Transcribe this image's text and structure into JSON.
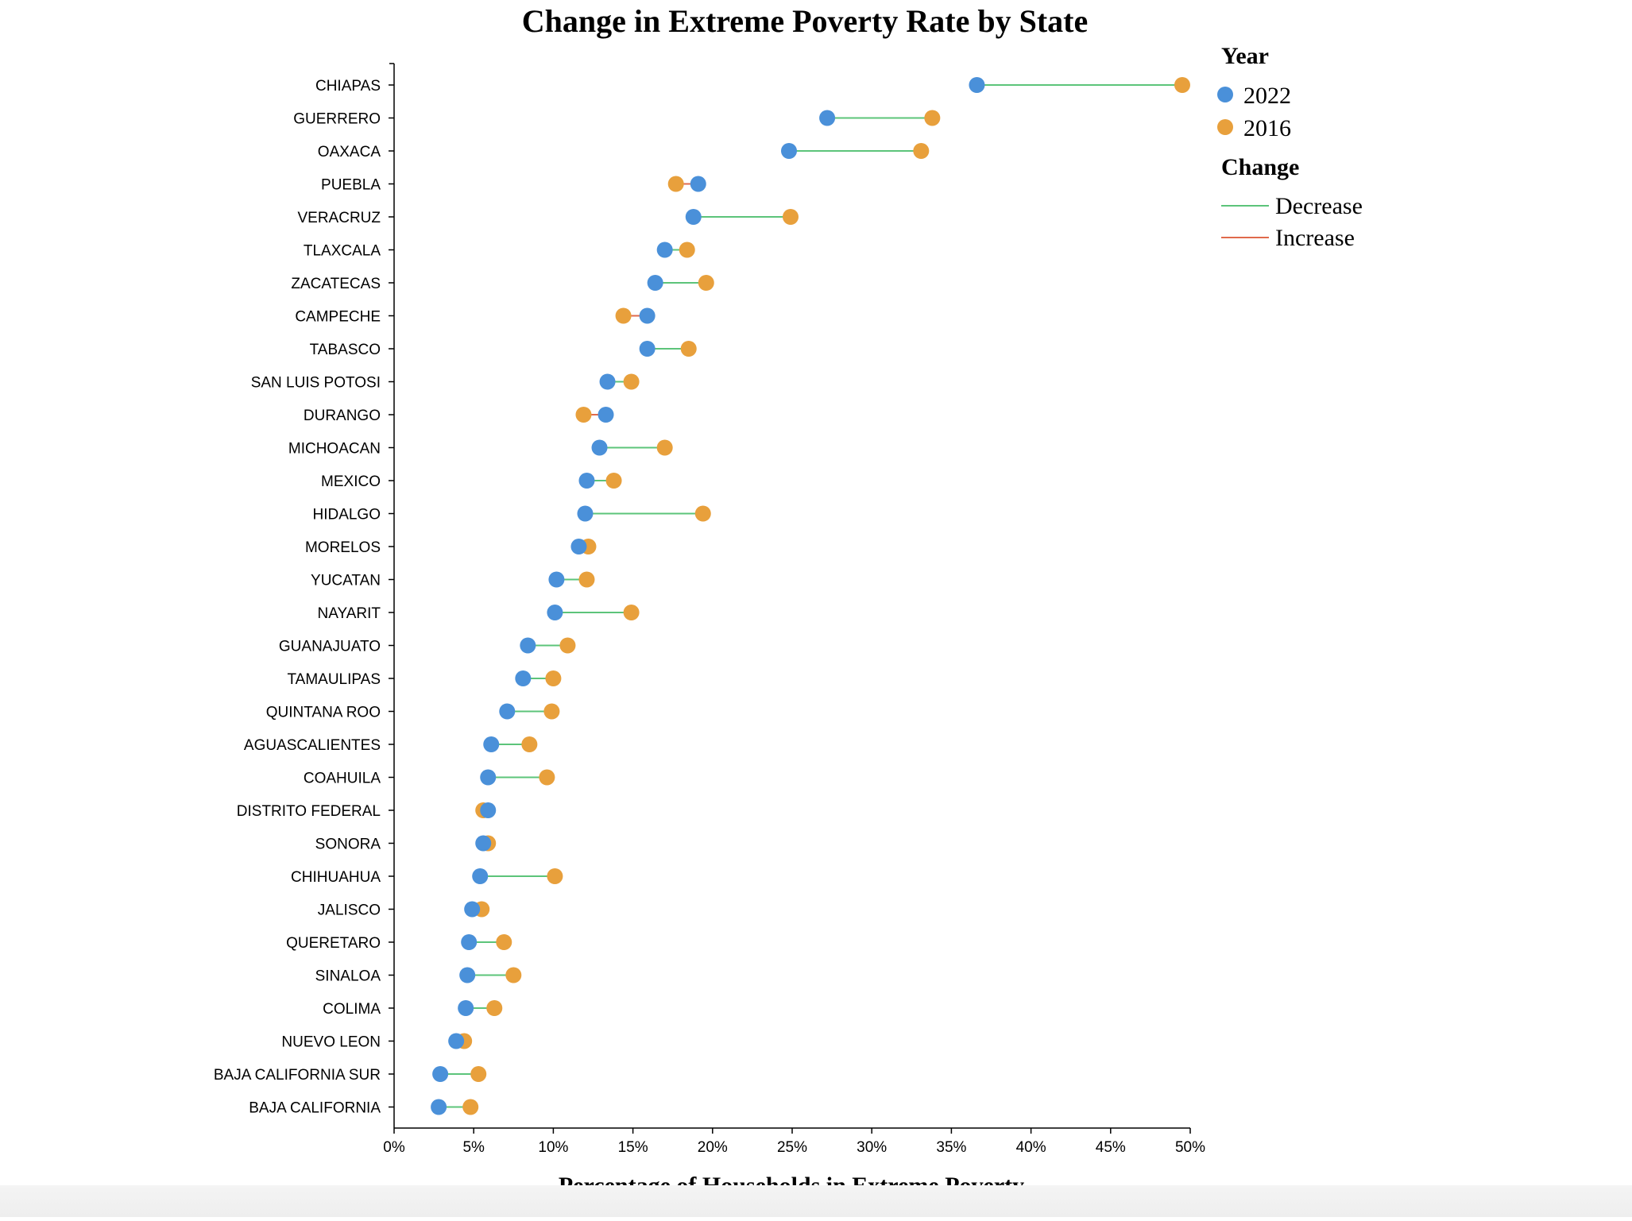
{
  "chart_data": {
    "type": "dumbbell",
    "title": "Change in Extreme Poverty Rate by State",
    "xlabel": "Percentage of Households in Extreme Poverty",
    "ylabel": "",
    "xlim": [
      0,
      50
    ],
    "xticks": [
      "0%",
      "5%",
      "10%",
      "15%",
      "20%",
      "25%",
      "30%",
      "35%",
      "40%",
      "45%",
      "50%"
    ],
    "xtick_values": [
      0,
      5,
      10,
      15,
      20,
      25,
      30,
      35,
      40,
      45,
      50
    ],
    "legend": {
      "year_title": "Year",
      "year_entries": [
        {
          "label": "2022",
          "color": "#4a90d9"
        },
        {
          "label": "2016",
          "color": "#e8a03c"
        }
      ],
      "change_title": "Change",
      "change_entries": [
        {
          "label": "Decrease",
          "color": "#5cc47a"
        },
        {
          "label": "Increase",
          "color": "#e06a4c"
        }
      ],
      "placement": "top-right"
    },
    "series": [
      {
        "name": "2022",
        "color": "#4a90d9"
      },
      {
        "name": "2016",
        "color": "#e8a03c"
      }
    ],
    "states": [
      {
        "state": "CHIAPAS",
        "v2022": 36.6,
        "v2016": 49.5
      },
      {
        "state": "GUERRERO",
        "v2022": 27.2,
        "v2016": 33.8
      },
      {
        "state": "OAXACA",
        "v2022": 24.8,
        "v2016": 33.1
      },
      {
        "state": "PUEBLA",
        "v2022": 19.1,
        "v2016": 17.7
      },
      {
        "state": "VERACRUZ",
        "v2022": 18.8,
        "v2016": 24.9
      },
      {
        "state": "TLAXCALA",
        "v2022": 17.0,
        "v2016": 18.4
      },
      {
        "state": "ZACATECAS",
        "v2022": 16.4,
        "v2016": 19.6
      },
      {
        "state": "CAMPECHE",
        "v2022": 15.9,
        "v2016": 14.4
      },
      {
        "state": "TABASCO",
        "v2022": 15.9,
        "v2016": 18.5
      },
      {
        "state": "SAN LUIS POTOSI",
        "v2022": 13.4,
        "v2016": 14.9
      },
      {
        "state": "DURANGO",
        "v2022": 13.3,
        "v2016": 11.9
      },
      {
        "state": "MICHOACAN",
        "v2022": 12.9,
        "v2016": 17.0
      },
      {
        "state": "MEXICO",
        "v2022": 12.1,
        "v2016": 13.8
      },
      {
        "state": "HIDALGO",
        "v2022": 12.0,
        "v2016": 19.4
      },
      {
        "state": "MORELOS",
        "v2022": 11.6,
        "v2016": 12.2
      },
      {
        "state": "YUCATAN",
        "v2022": 10.2,
        "v2016": 12.1
      },
      {
        "state": "NAYARIT",
        "v2022": 10.1,
        "v2016": 14.9
      },
      {
        "state": "GUANAJUATO",
        "v2022": 8.4,
        "v2016": 10.9
      },
      {
        "state": "TAMAULIPAS",
        "v2022": 8.1,
        "v2016": 10.0
      },
      {
        "state": "QUINTANA ROO",
        "v2022": 7.1,
        "v2016": 9.9
      },
      {
        "state": "AGUASCALIENTES",
        "v2022": 6.1,
        "v2016": 8.5
      },
      {
        "state": "COAHUILA",
        "v2022": 5.9,
        "v2016": 9.6
      },
      {
        "state": "DISTRITO FEDERAL",
        "v2022": 5.9,
        "v2016": 5.6
      },
      {
        "state": "SONORA",
        "v2022": 5.6,
        "v2016": 5.9
      },
      {
        "state": "CHIHUAHUA",
        "v2022": 5.4,
        "v2016": 10.1
      },
      {
        "state": "JALISCO",
        "v2022": 4.9,
        "v2016": 5.5
      },
      {
        "state": "QUERETARO",
        "v2022": 4.7,
        "v2016": 6.9
      },
      {
        "state": "SINALOA",
        "v2022": 4.6,
        "v2016": 7.5
      },
      {
        "state": "COLIMA",
        "v2022": 4.5,
        "v2016": 6.3
      },
      {
        "state": "NUEVO LEON",
        "v2022": 3.9,
        "v2016": 4.4
      },
      {
        "state": "BAJA CALIFORNIA SUR",
        "v2022": 2.9,
        "v2016": 5.3
      },
      {
        "state": "BAJA CALIFORNIA",
        "v2022": 2.8,
        "v2016": 4.8
      }
    ]
  }
}
